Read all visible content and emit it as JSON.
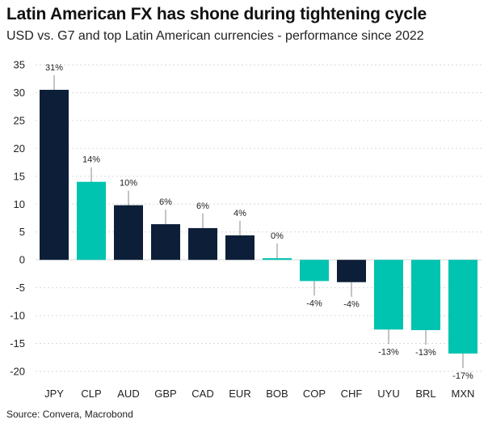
{
  "title": "Latin American FX has shone during tightening cycle",
  "subtitle": "USD vs. G7 and top Latin American currencies - performance since 2022",
  "source": "Source: Convera, Macrobond",
  "colors": {
    "g7": "#0d1f38",
    "latam": "#00c3b0",
    "grid": "#d9d9d9",
    "leader": "#888888"
  },
  "chart_data": {
    "type": "bar",
    "title": "Latin American FX has shone during tightening cycle",
    "subtitle": "USD vs. G7 and top Latin American currencies - performance since 2022",
    "categories": [
      "JPY",
      "CLP",
      "AUD",
      "GBP",
      "CAD",
      "EUR",
      "BOB",
      "COP",
      "CHF",
      "UYU",
      "BRL",
      "MXN"
    ],
    "values": [
      30.5,
      14.0,
      9.8,
      6.4,
      5.7,
      4.4,
      0.3,
      -3.8,
      -4.0,
      -12.5,
      -12.6,
      -16.8
    ],
    "data_labels": [
      "31%",
      "14%",
      "10%",
      "6%",
      "6%",
      "4%",
      "0%",
      "-4%",
      "-4%",
      "-13%",
      "-13%",
      "-17%"
    ],
    "groups": [
      "g7",
      "latam",
      "g7",
      "g7",
      "g7",
      "g7",
      "latam",
      "latam",
      "g7",
      "latam",
      "latam",
      "latam"
    ],
    "ylim": [
      -20,
      35
    ],
    "yticks": [
      -20,
      -15,
      -10,
      -5,
      0,
      5,
      10,
      15,
      20,
      25,
      30,
      35
    ],
    "grid": true,
    "legend": "none"
  }
}
